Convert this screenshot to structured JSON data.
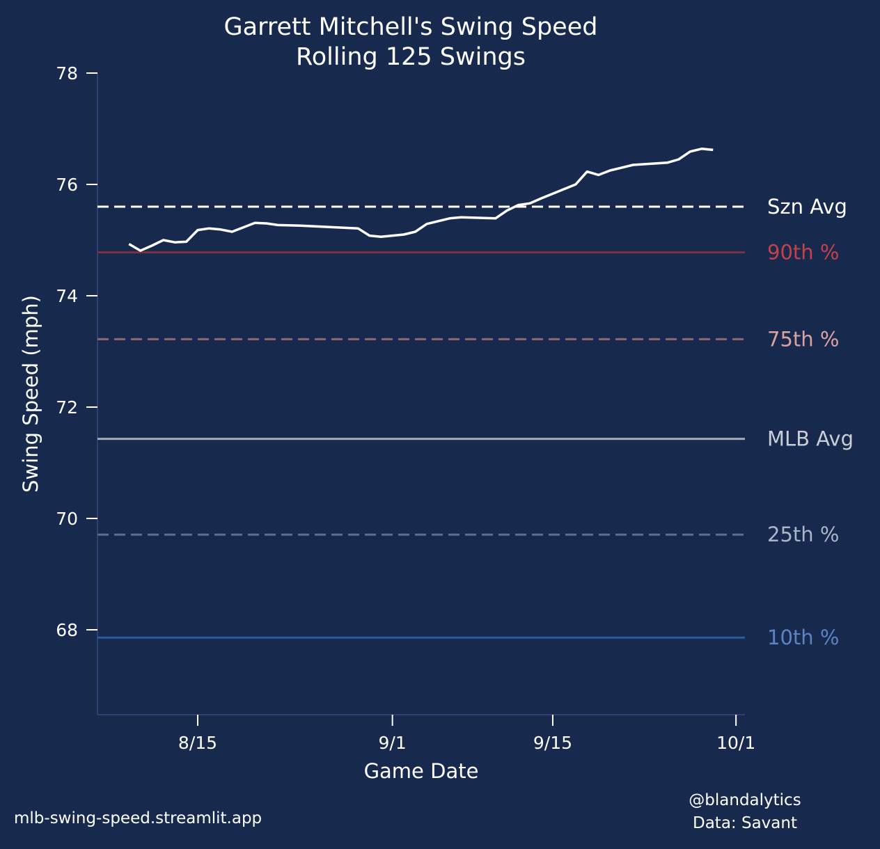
{
  "chart_data": {
    "type": "line",
    "title": "Garrett Mitchell's Swing Speed",
    "subtitle": "Rolling 125 Swings",
    "xlabel": "Game Date",
    "ylabel": "Swing Speed (mph)",
    "ylim": [
      66.5,
      78
    ],
    "xlim": [
      "8/6",
      "10/1"
    ],
    "yticks": [
      68,
      70,
      72,
      74,
      76,
      78
    ],
    "xticks": [
      "8/15",
      "9/1",
      "9/15",
      "10/1"
    ],
    "grid": false,
    "series": [
      {
        "color": "#ffffff",
        "x": [
          "8/9",
          "8/10",
          "8/11",
          "8/12",
          "8/13",
          "8/14",
          "8/15",
          "8/16",
          "8/17",
          "8/18",
          "8/20",
          "8/21",
          "8/22",
          "8/24",
          "8/29",
          "8/30",
          "8/31",
          "9/2",
          "9/3",
          "9/4",
          "9/6",
          "9/7",
          "9/10",
          "9/11",
          "9/12",
          "9/13",
          "9/14",
          "9/17",
          "9/18",
          "9/19",
          "9/20",
          "9/22",
          "9/25",
          "9/26",
          "9/27",
          "9/28",
          "9/29"
        ],
        "y": [
          74.93,
          74.81,
          74.9,
          75.0,
          74.96,
          74.97,
          75.18,
          75.21,
          75.19,
          75.15,
          75.31,
          75.3,
          75.27,
          75.26,
          75.21,
          75.08,
          75.06,
          75.1,
          75.15,
          75.29,
          75.39,
          75.41,
          75.39,
          75.53,
          75.63,
          75.66,
          75.75,
          76.0,
          76.23,
          76.17,
          76.25,
          76.35,
          76.39,
          76.45,
          76.59,
          76.64,
          76.62
        ]
      }
    ],
    "reference_lines": [
      {
        "label": "Szn Avg",
        "value": 75.6,
        "style": "dashed",
        "color": "#ffffff",
        "label_color": "#ffffff"
      },
      {
        "label": "90th %",
        "value": 74.78,
        "style": "solid",
        "color": "#7a3242",
        "label_color": "#c4414b"
      },
      {
        "label": "75th %",
        "value": 73.22,
        "style": "dashed",
        "color": "#8a6872",
        "label_color": "#dba3a0"
      },
      {
        "label": "MLB Avg",
        "value": 71.43,
        "style": "solid",
        "color": "#a3aab8",
        "label_color": "#c9cdd6"
      },
      {
        "label": "25th %",
        "value": 69.71,
        "style": "dashed",
        "color": "#586e90",
        "label_color": "#a9b5c9"
      },
      {
        "label": "10th %",
        "value": 67.86,
        "style": "solid",
        "color": "#2d58a0",
        "label_color": "#5c84c2"
      }
    ]
  },
  "footer": {
    "source_left": "mlb-swing-speed.streamlit.app",
    "credit": "@blandalytics",
    "data_source": "Data: Savant"
  },
  "colors": {
    "background": "#172a4e",
    "axis": "#2e4272"
  }
}
